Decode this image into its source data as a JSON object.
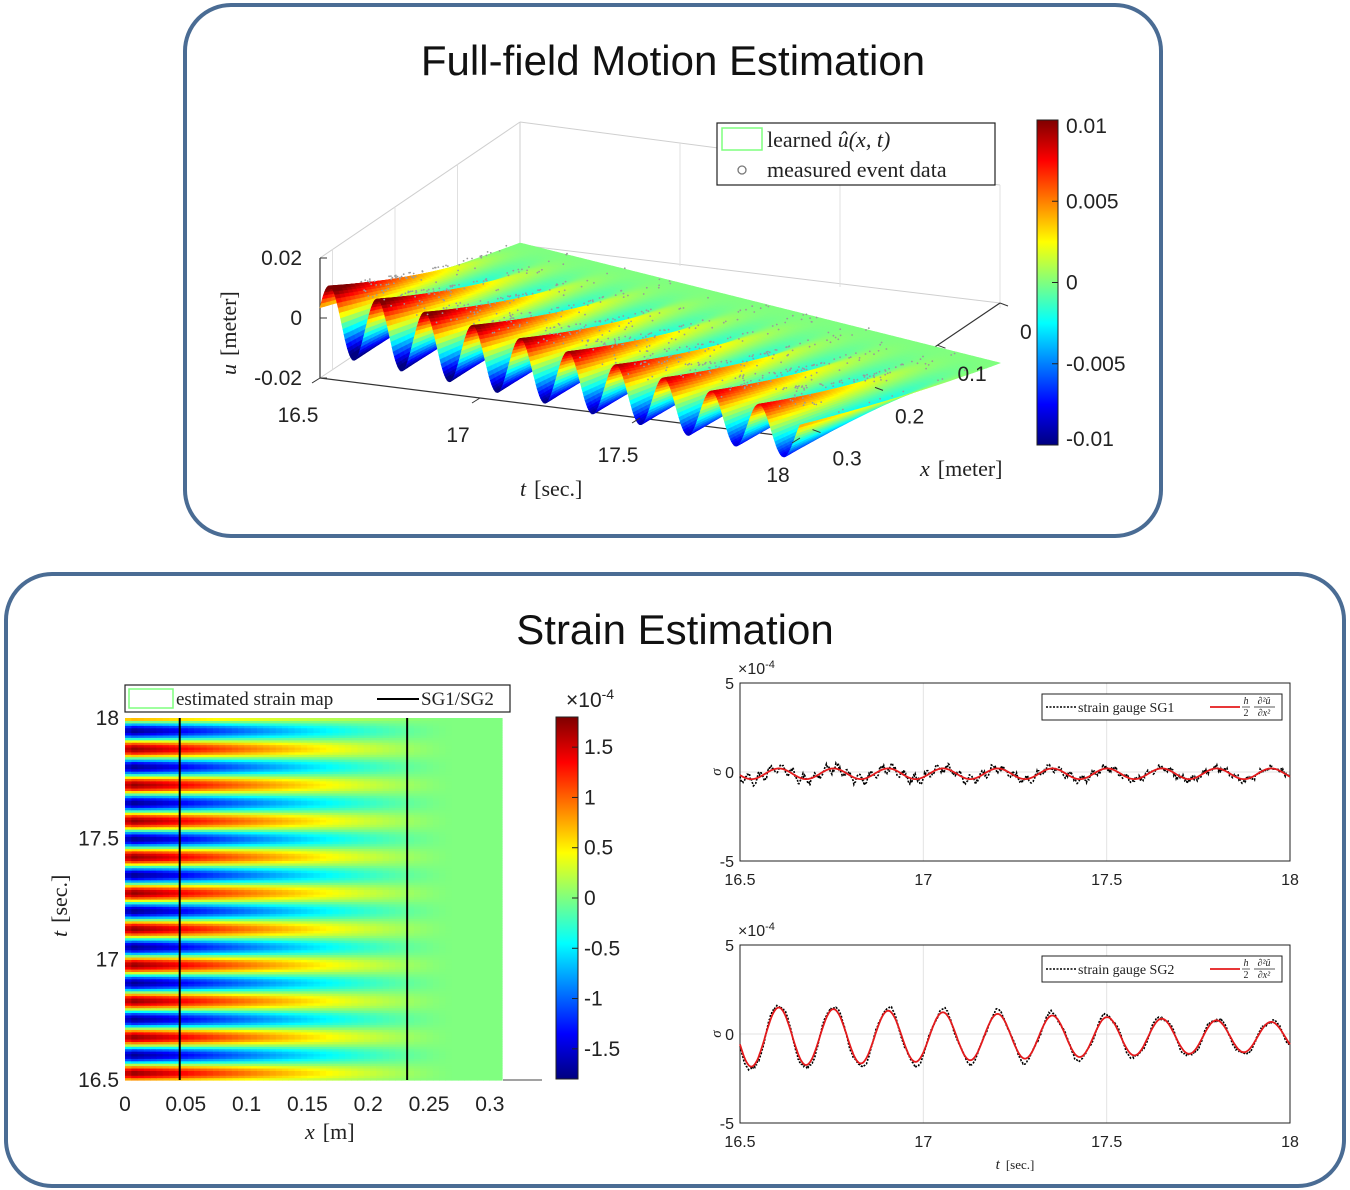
{
  "panels": {
    "top_title": "Full-field Motion Estimation",
    "bottom_title": "Strain Estimation"
  },
  "colors": {
    "panel_border": "#4a6c94",
    "strain_gauge_line": "#000000",
    "estimate_line": "#e41a1c",
    "event_points": "#9a9a9a"
  },
  "chart_data": [
    {
      "id": "surface",
      "type": "surface3d",
      "xlabel_italic": "t",
      "xlabel_unit": "[sec.]",
      "ylabel_italic": "x",
      "ylabel_unit": "[meter]",
      "zlabel_italic": "u",
      "zlabel_unit": "[meter]",
      "t_ticks": [
        "16.5",
        "17",
        "17.5",
        "18"
      ],
      "x_ticks": [
        "0",
        "0.1",
        "0.2",
        "0.3"
      ],
      "z_ticks": [
        "0.02",
        "0",
        "-0.02"
      ],
      "legend": [
        {
          "label": "learned",
          "math": "û(x, t)",
          "symbol": "surface-patch"
        },
        {
          "label": "measured event data",
          "symbol": "circle"
        }
      ],
      "colorbar": {
        "min": -0.01,
        "max": 0.01,
        "ticks": [
          "0.01",
          "0.005",
          "0",
          "-0.005",
          "-0.01"
        ]
      },
      "t_range": [
        16.5,
        18
      ],
      "x_range": [
        0,
        0.32
      ],
      "amplitude_at_tip": 0.012,
      "frequency_hz": 6.7,
      "colormap": "jet"
    },
    {
      "id": "strain-map",
      "type": "heatmap",
      "xlabel_italic": "x",
      "xlabel_unit": "[m]",
      "ylabel_italic": "t",
      "ylabel_unit": "[sec.]",
      "x_ticks": [
        "0",
        "0.05",
        "0.1",
        "0.15",
        "0.2",
        "0.25",
        "0.3"
      ],
      "y_ticks": [
        "18",
        "17.5",
        "17",
        "16.5"
      ],
      "legend": [
        {
          "label": "estimated strain map",
          "symbol": "surface-patch"
        },
        {
          "label": "SG1/SG2",
          "symbol": "line"
        }
      ],
      "sg_positions_m": [
        0.045,
        0.232
      ],
      "x_range": [
        0,
        0.31
      ],
      "y_range": [
        16.5,
        18
      ],
      "colorbar": {
        "exponent": "×10",
        "exponent_power": "-4",
        "min": -1.8,
        "max": 1.8,
        "ticks": [
          "1.5",
          "1",
          "0.5",
          "0",
          "-0.5",
          "-1",
          "-1.5"
        ]
      },
      "colormap": "jet"
    },
    {
      "id": "sg1",
      "type": "line",
      "ylabel": "σ",
      "y_exponent": "×10",
      "y_exponent_power": "-4",
      "y_ticks": [
        "5",
        "0",
        "-5"
      ],
      "x_ticks": [
        "16.5",
        "17",
        "17.5",
        "18"
      ],
      "xlim": [
        16.5,
        18
      ],
      "ylim": [
        -5,
        5
      ],
      "grid": true,
      "legend": {
        "gauge": "strain gauge SG1",
        "estimate_prefix": "h",
        "estimate_den": "2",
        "estimate_num": "∂²û",
        "estimate_den2": "∂x²"
      },
      "amplitude": 0.3,
      "frequency_hz": 6.7
    },
    {
      "id": "sg2",
      "type": "line",
      "ylabel": "σ",
      "y_exponent": "×10",
      "y_exponent_power": "-4",
      "y_ticks": [
        "5",
        "0",
        "-5"
      ],
      "x_ticks": [
        "16.5",
        "17",
        "17.5",
        "18"
      ],
      "xlabel_italic": "t",
      "xlabel_unit": "[sec.]",
      "xlim": [
        16.5,
        18
      ],
      "ylim": [
        -5,
        5
      ],
      "grid": true,
      "legend": {
        "gauge": "strain gauge SG2",
        "estimate_prefix": "h",
        "estimate_den": "2",
        "estimate_num": "∂²û",
        "estimate_den2": "∂x²"
      },
      "amplitude_start": 1.7,
      "amplitude_end": 0.8,
      "frequency_hz": 6.7
    }
  ]
}
